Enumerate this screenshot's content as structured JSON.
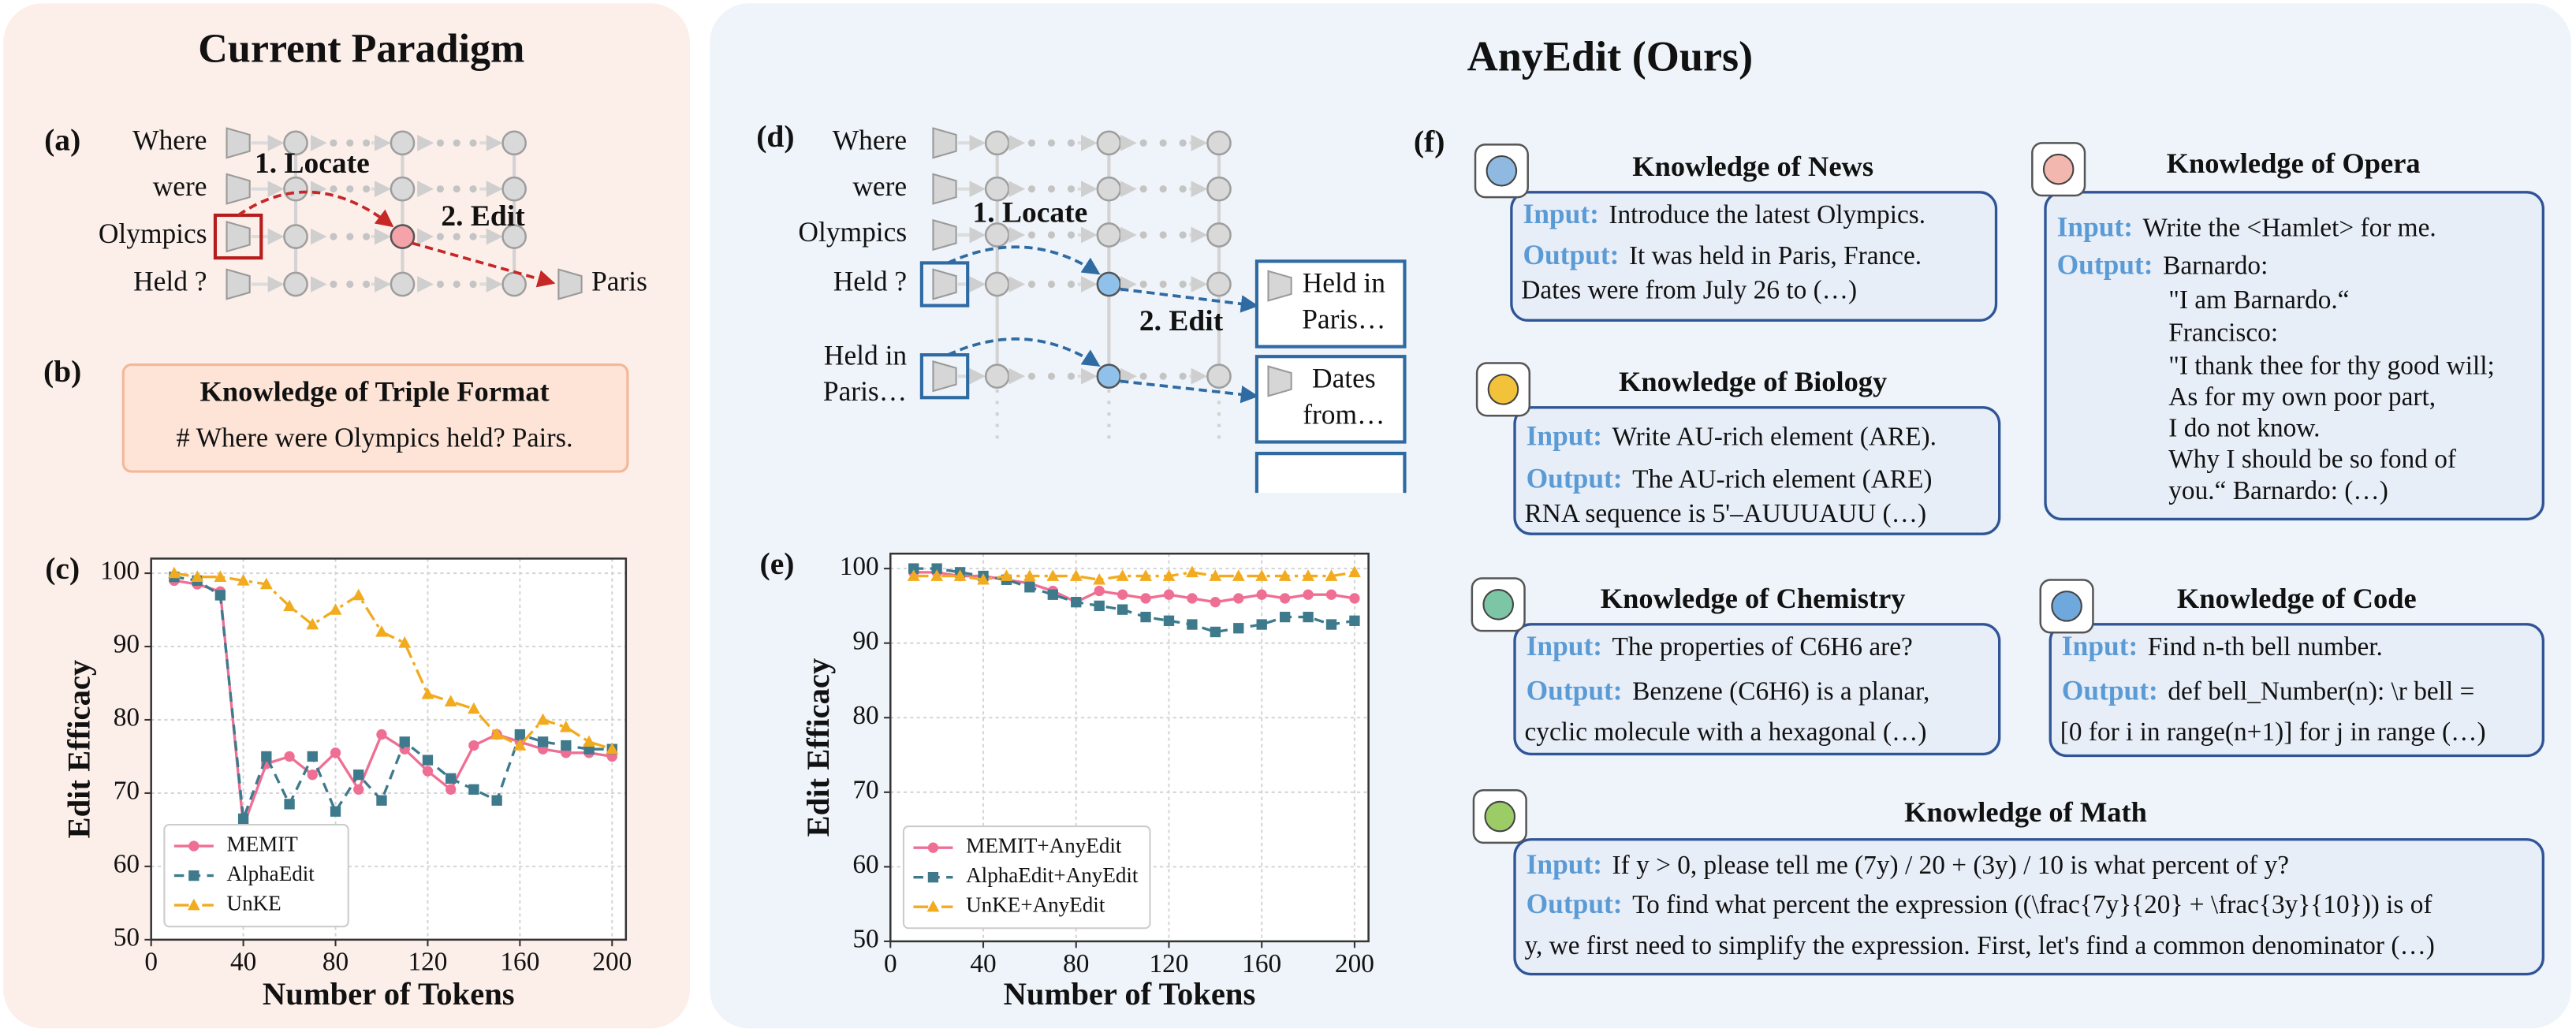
{
  "titles": {
    "left": "Current Paradigm",
    "right": "AnyEdit (Ours)"
  },
  "panel_a": {
    "label": "(a)",
    "tokens": [
      "Where",
      "were",
      "Olympics",
      "Held ?"
    ],
    "step1": "1. Locate",
    "step2": "2. Edit",
    "output": "Paris"
  },
  "panel_b": {
    "label": "(b)",
    "title": "Knowledge of Triple Format",
    "text": "# Where were Olympics held? Pairs."
  },
  "panel_c": {
    "label": "(c)"
  },
  "panel_d": {
    "label": "(d)",
    "tokens": [
      "Where",
      "were",
      "Olympics",
      "Held ?"
    ],
    "token_multi": [
      "Held in",
      "Paris…"
    ],
    "step1": "1. Locate",
    "step2": "2. Edit",
    "outputs": [
      [
        "Held in",
        "Paris…"
      ],
      [
        "Dates",
        "from…"
      ]
    ]
  },
  "panel_e": {
    "label": "(e)"
  },
  "panel_f": {
    "label": "(f)",
    "cards": [
      {
        "title": "Knowledge of News",
        "input_label": "Input:",
        "input": "Introduce the latest Olympics.",
        "output_label": "Output:",
        "output": [
          "It was held in Paris, France.",
          "Dates were from July 26 to (…)"
        ]
      },
      {
        "title": "Knowledge of Opera",
        "input_label": "Input:",
        "input": "Write the <Hamlet> for me.",
        "output_label": "Output:",
        "output": [
          "Barnardo:",
          "\"I am Barnardo.“",
          "Francisco:",
          "\"I thank thee for thy good will;",
          "As for my own poor part,",
          "I do not know.",
          "Why I should be so fond of",
          "you.“ Barnardo: (…)"
        ]
      },
      {
        "title": "Knowledge of Biology",
        "input_label": "Input:",
        "input": "Write AU-rich element (ARE).",
        "output_label": "Output:",
        "output": [
          "The AU-rich element (ARE)",
          "RNA sequence is 5'–AUUUAUU (…)"
        ]
      },
      {
        "title": "Knowledge of Chemistry",
        "input_label": "Input:",
        "input": "The properties of C6H6 are?",
        "output_label": "Output:",
        "output": [
          "Benzene (C6H6) is a planar,",
          "cyclic molecule with a hexagonal (…)"
        ]
      },
      {
        "title": "Knowledge of Code",
        "input_label": "Input:",
        "input": "Find n-th bell number.",
        "output_label": "Output:",
        "output": [
          "def bell_Number(n): \\r bell =",
          "[0 for i in range(n+1)] for j in range (…)"
        ]
      },
      {
        "title": "Knowledge of Math",
        "input_label": "Input:",
        "input": "If y > 0, please tell me (7y) / 20 + (3y) / 10 is what percent of y?",
        "output_label": "Output:",
        "output": [
          "To find what percent the expression ((\\frac{7y}{20} + \\frac{3y}{10})) is of",
          "y, we first need to simplify the expression. First, let's find a common denominator (…)"
        ]
      }
    ]
  },
  "chart_data": [
    {
      "type": "line",
      "xlabel": "Number of Tokens",
      "ylabel": "Edit Efficacy",
      "x": [
        10,
        20,
        30,
        40,
        50,
        60,
        70,
        80,
        90,
        100,
        110,
        120,
        130,
        140,
        150,
        160,
        170,
        180,
        190,
        200
      ],
      "xlim": [
        0,
        206
      ],
      "ylim": [
        50,
        102
      ],
      "xticks": [
        0,
        40,
        80,
        120,
        160,
        200
      ],
      "yticks": [
        50,
        60,
        70,
        80,
        90,
        100
      ],
      "grid": true,
      "legend": "lower left",
      "series": [
        {
          "name": "MEMIT",
          "color": "#ef6f94",
          "marker": "o",
          "linestyle": "solid",
          "values": [
            99,
            98.5,
            97.5,
            65.5,
            74,
            75,
            72.5,
            75.5,
            70.5,
            78,
            76,
            73,
            70.5,
            76.5,
            78,
            77,
            76,
            75.5,
            75.5,
            75
          ]
        },
        {
          "name": "AlphaEdit",
          "color": "#3e7a8c",
          "marker": "s",
          "linestyle": "dashed",
          "values": [
            99.5,
            99,
            97,
            66.5,
            75,
            68.5,
            75,
            67.5,
            72.5,
            69,
            77,
            74.5,
            72,
            70.5,
            69,
            78,
            77,
            76.5,
            76,
            76
          ]
        },
        {
          "name": "UnKE",
          "color": "#f2ab1e",
          "marker": "^",
          "linestyle": "dashdot",
          "values": [
            100,
            99.5,
            99.5,
            99,
            98.5,
            95.5,
            93,
            95,
            97,
            92,
            90.5,
            83.5,
            82.5,
            81.5,
            78,
            76.5,
            80,
            79,
            77,
            76
          ]
        }
      ]
    },
    {
      "type": "line",
      "xlabel": "Number of Tokens",
      "ylabel": "Edit Efficacy",
      "x": [
        10,
        20,
        30,
        40,
        50,
        60,
        70,
        80,
        90,
        100,
        110,
        120,
        130,
        140,
        150,
        160,
        170,
        180,
        190,
        200
      ],
      "xlim": [
        0,
        206
      ],
      "ylim": [
        50,
        102
      ],
      "xticks": [
        0,
        40,
        80,
        120,
        160,
        200
      ],
      "yticks": [
        50,
        60,
        70,
        80,
        90,
        100
      ],
      "grid": true,
      "legend": "lower left",
      "series": [
        {
          "name": "MEMIT+AnyEdit",
          "color": "#ef6f94",
          "marker": "o",
          "linestyle": "solid",
          "values": [
            99.5,
            99.5,
            99,
            99,
            98.5,
            98,
            97,
            95.5,
            97,
            96.5,
            96,
            96.5,
            96,
            95.5,
            96,
            96.5,
            96,
            96.5,
            96.5,
            96
          ]
        },
        {
          "name": "AlphaEdit+AnyEdit",
          "color": "#3e7a8c",
          "marker": "s",
          "linestyle": "dashed",
          "values": [
            100,
            100,
            99.5,
            99,
            98.5,
            97.5,
            96.5,
            95.5,
            95,
            94.5,
            93.5,
            93,
            92.5,
            91.5,
            92,
            92.5,
            93.5,
            93.5,
            92.5,
            93
          ]
        },
        {
          "name": "UnKE+AnyEdit",
          "color": "#f2ab1e",
          "marker": "^",
          "linestyle": "dashdot",
          "values": [
            99,
            99,
            99,
            98.5,
            99,
            99,
            99,
            99,
            98.5,
            99,
            99,
            99,
            99.5,
            99,
            99,
            99,
            99,
            99,
            99,
            99.5
          ]
        }
      ]
    }
  ]
}
